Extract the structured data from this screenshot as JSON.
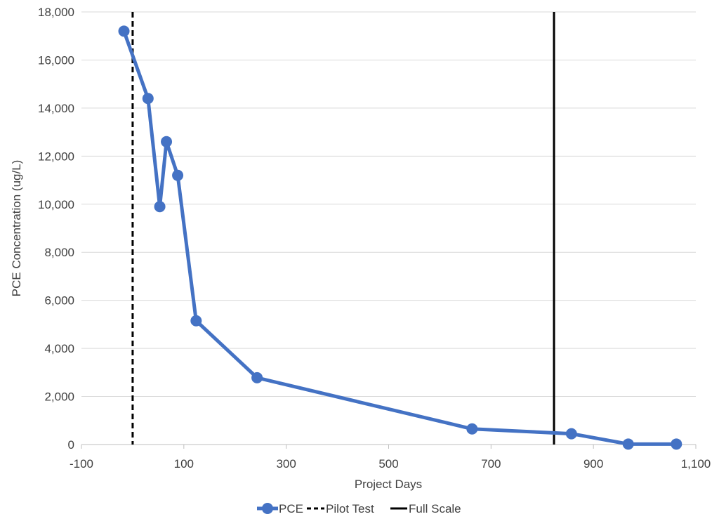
{
  "chart_data": {
    "type": "line",
    "xlabel": "Project Days",
    "ylabel": "PCE Concentration (ug/L)",
    "xlim": [
      -100,
      1100
    ],
    "ylim": [
      0,
      18000
    ],
    "x_ticks": [
      -100,
      100,
      300,
      500,
      700,
      900,
      1100
    ],
    "x_tick_labels": [
      "-100",
      "100",
      "300",
      "500",
      "700",
      "900",
      "1,100"
    ],
    "y_ticks": [
      0,
      2000,
      4000,
      6000,
      8000,
      10000,
      12000,
      14000,
      16000,
      18000
    ],
    "y_tick_labels": [
      "0",
      "2,000",
      "4,000",
      "6,000",
      "8,000",
      "10,000",
      "12,000",
      "14,000",
      "16,000",
      "18,000"
    ],
    "grid": "horizontal",
    "legend_position": "bottom",
    "series": [
      {
        "name": "PCE",
        "color": "#4472C4",
        "marker": "circle",
        "x": [
          -17,
          30,
          53,
          66,
          88,
          124,
          243,
          663,
          857,
          968,
          1062
        ],
        "y": [
          17200,
          14400,
          9900,
          12600,
          11200,
          5150,
          2780,
          650,
          450,
          20,
          20
        ]
      }
    ],
    "reference_lines": [
      {
        "name": "Pilot Test",
        "x": 0,
        "style": "dashed",
        "color": "#000000"
      },
      {
        "name": "Full Scale",
        "x": 823,
        "style": "solid",
        "color": "#000000"
      }
    ]
  }
}
